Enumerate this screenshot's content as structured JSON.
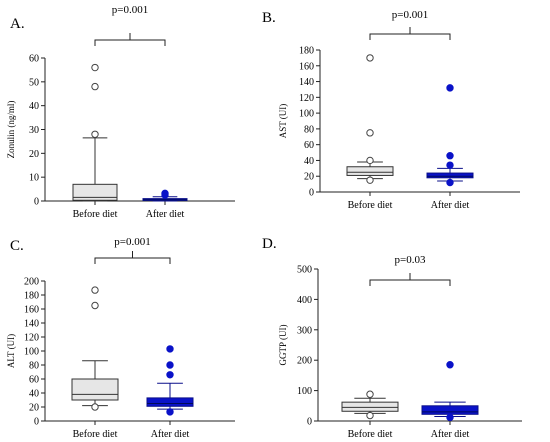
{
  "colors": {
    "before_fill": "#e6e6e6",
    "before_stroke": "#333333",
    "after_fill": "#0a12c8",
    "after_stroke": "#0a0f8a",
    "outlier_after": "#0a12c8",
    "axis": "#222222"
  },
  "chart_data": [
    {
      "type": "box",
      "panel_label": "A.",
      "p_value": "p=0.001",
      "ylabel": "Zonulin  (ng/ml)",
      "ylim": [
        0,
        60
      ],
      "yticks": [
        0,
        10,
        20,
        30,
        40,
        50,
        60
      ],
      "categories": [
        "Before diet",
        "After diet"
      ],
      "series": [
        {
          "category": "Before diet",
          "whisker_low": 0,
          "q1": 0.3,
          "median": 1.5,
          "q3": 7,
          "whisker_high": 26.5,
          "outliers": [
            28,
            48,
            56
          ]
        },
        {
          "category": "After diet",
          "whisker_low": 0,
          "q1": 0.2,
          "median": 0.5,
          "q3": 1,
          "whisker_high": 1.8,
          "outliers": [
            2.5,
            3.2
          ]
        }
      ]
    },
    {
      "type": "box",
      "panel_label": "B.",
      "p_value": "p=0.001",
      "ylabel": "AST (UI)",
      "ylim": [
        0,
        180
      ],
      "yticks": [
        0,
        20,
        40,
        60,
        80,
        100,
        120,
        140,
        160,
        180
      ],
      "categories": [
        "Before diet",
        "After diet"
      ],
      "series": [
        {
          "category": "Before diet",
          "whisker_low": 17,
          "q1": 21,
          "median": 25,
          "q3": 32,
          "whisker_high": 38,
          "outliers": [
            15,
            40,
            75,
            170
          ]
        },
        {
          "category": "After diet",
          "whisker_low": 14,
          "q1": 18,
          "median": 20,
          "q3": 24,
          "whisker_high": 30,
          "outliers": [
            12,
            34,
            46,
            132
          ]
        }
      ]
    },
    {
      "type": "box",
      "panel_label": "C.",
      "p_value": "p=0.001",
      "ylabel": "ALT (UI)",
      "ylim": [
        0,
        200
      ],
      "yticks": [
        0,
        20,
        40,
        60,
        80,
        100,
        120,
        140,
        160,
        180,
        200
      ],
      "categories": [
        "Before diet",
        "After diet"
      ],
      "series": [
        {
          "category": "Before diet",
          "whisker_low": 22,
          "q1": 30,
          "median": 38,
          "q3": 60,
          "whisker_high": 86,
          "outliers": [
            20,
            165,
            187
          ]
        },
        {
          "category": "After diet",
          "whisker_low": 17,
          "q1": 21,
          "median": 25,
          "q3": 33,
          "whisker_high": 54,
          "outliers": [
            13,
            66,
            80,
            103
          ]
        }
      ]
    },
    {
      "type": "box",
      "panel_label": "D.",
      "p_value": "p=0.03",
      "ylabel": "GGTP  (UI)",
      "ylim": [
        0,
        500
      ],
      "yticks": [
        0,
        100,
        200,
        300,
        400,
        500
      ],
      "categories": [
        "Before diet",
        "After diet"
      ],
      "series": [
        {
          "category": "Before diet",
          "whisker_low": 25,
          "q1": 32,
          "median": 45,
          "q3": 62,
          "whisker_high": 75,
          "outliers": [
            18,
            88
          ]
        },
        {
          "category": "After diet",
          "whisker_low": 15,
          "q1": 22,
          "median": 30,
          "q3": 50,
          "whisker_high": 62,
          "outliers": [
            12,
            185
          ]
        }
      ]
    }
  ]
}
